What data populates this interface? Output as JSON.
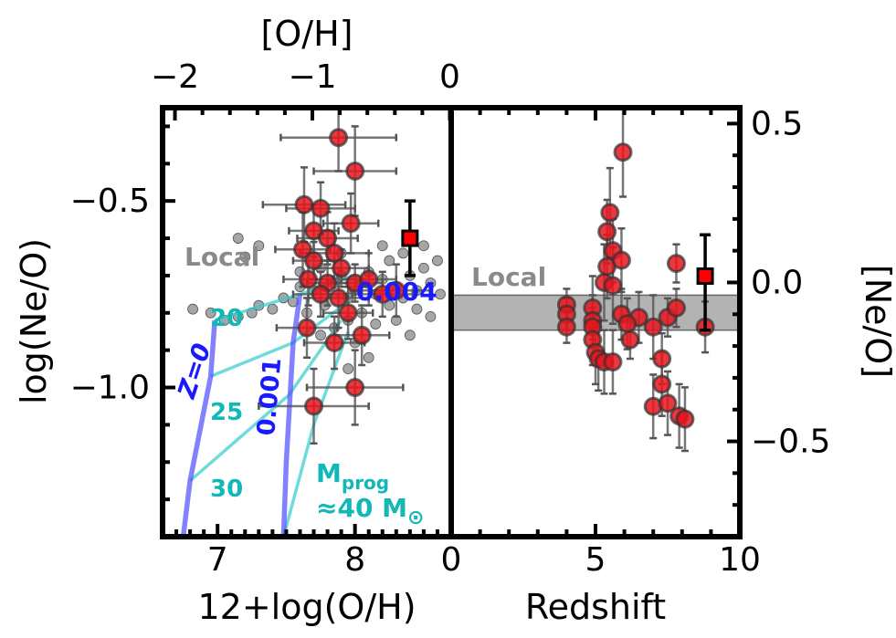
{
  "chart_data": [
    {
      "type": "scatter",
      "panel": "left",
      "xlabel": "12+log(O/H)",
      "ylabel": "log(Ne/O)",
      "top_xlabel": "[O/H]",
      "xlim": [
        6.6,
        8.7
      ],
      "ylim": [
        -1.4,
        -0.25
      ],
      "x_ticks": [
        7,
        8
      ],
      "y_ticks": [
        -0.5,
        -1.0
      ],
      "x_tick_labels": [
        "7",
        "8"
      ],
      "y_tick_labels": [
        "−0.5",
        "−1.0"
      ],
      "top_ticks": [
        -2,
        -1,
        0
      ],
      "top_tick_labels": [
        "−2",
        "−1",
        "0"
      ],
      "local_label": "Local",
      "local_points": [
        [
          6.82,
          -0.79
        ],
        [
          6.95,
          -0.8
        ],
        [
          7.05,
          -0.82
        ],
        [
          7.15,
          -0.81
        ],
        [
          7.25,
          -0.8
        ],
        [
          7.3,
          -0.78
        ],
        [
          7.4,
          -0.79
        ],
        [
          7.48,
          -0.76
        ],
        [
          7.55,
          -0.77
        ],
        [
          7.6,
          -0.73
        ],
        [
          7.7,
          -0.74
        ],
        [
          7.65,
          -0.8
        ],
        [
          7.78,
          -0.78
        ],
        [
          7.85,
          -0.72
        ],
        [
          7.9,
          -0.7
        ],
        [
          7.95,
          -0.76
        ],
        [
          8.0,
          -0.74
        ],
        [
          8.05,
          -0.72
        ],
        [
          8.1,
          -0.69
        ],
        [
          8.15,
          -0.75
        ],
        [
          8.2,
          -0.71
        ],
        [
          8.25,
          -0.78
        ],
        [
          8.3,
          -0.73
        ],
        [
          8.35,
          -0.76
        ],
        [
          8.4,
          -0.7
        ],
        [
          8.45,
          -0.74
        ],
        [
          8.5,
          -0.68
        ],
        [
          8.55,
          -0.72
        ],
        [
          8.6,
          -0.66
        ],
        [
          8.62,
          -0.75
        ],
        [
          8.05,
          -0.8
        ],
        [
          7.95,
          -0.82
        ],
        [
          8.15,
          -0.83
        ],
        [
          8.3,
          -0.82
        ],
        [
          8.45,
          -0.79
        ],
        [
          7.85,
          -0.84
        ],
        [
          7.75,
          -0.86
        ],
        [
          8.0,
          -0.88
        ],
        [
          8.2,
          -0.62
        ],
        [
          8.35,
          -0.64
        ],
        [
          8.5,
          -0.62
        ],
        [
          7.9,
          -0.64
        ],
        [
          7.2,
          -0.65
        ],
        [
          7.15,
          -0.6
        ],
        [
          7.3,
          -0.62
        ],
        [
          8.1,
          -0.92
        ],
        [
          7.95,
          -0.95
        ],
        [
          8.4,
          -0.86
        ],
        [
          7.75,
          -0.68
        ],
        [
          7.6,
          -0.69
        ],
        [
          8.25,
          -0.66
        ],
        [
          8.55,
          -0.81
        ]
      ],
      "jwst_points": [
        {
          "x": 7.88,
          "y": -0.33,
          "xerr": 0.42,
          "yerr": 0.09
        },
        {
          "x": 8.0,
          "y": -0.42,
          "xerr": 0.3,
          "yerr": 0.12
        },
        {
          "x": 7.63,
          "y": -0.51,
          "xerr": 0.3,
          "yerr": 0.1
        },
        {
          "x": 7.75,
          "y": -0.52,
          "xerr": 0.25,
          "yerr": 0.07
        },
        {
          "x": 7.97,
          "y": -0.56,
          "xerr": 0.2,
          "yerr": 0.08
        },
        {
          "x": 7.7,
          "y": -0.58,
          "xerr": 0.18,
          "yerr": 0.07
        },
        {
          "x": 7.8,
          "y": -0.6,
          "xerr": 0.22,
          "yerr": 0.07
        },
        {
          "x": 7.62,
          "y": -0.63,
          "xerr": 0.2,
          "yerr": 0.1
        },
        {
          "x": 7.85,
          "y": -0.64,
          "xerr": 0.25,
          "yerr": 0.08
        },
        {
          "x": 7.7,
          "y": -0.66,
          "xerr": 0.15,
          "yerr": 0.05
        },
        {
          "x": 7.9,
          "y": -0.68,
          "xerr": 0.2,
          "yerr": 0.05
        },
        {
          "x": 7.66,
          "y": -0.71,
          "xerr": 0.18,
          "yerr": 0.07
        },
        {
          "x": 7.8,
          "y": -0.72,
          "xerr": 0.15,
          "yerr": 0.06
        },
        {
          "x": 8.0,
          "y": -0.72,
          "xerr": 0.2,
          "yerr": 0.05
        },
        {
          "x": 8.1,
          "y": -0.71,
          "xerr": 0.2,
          "yerr": 0.07
        },
        {
          "x": 7.75,
          "y": -0.75,
          "xerr": 0.2,
          "yerr": 0.06
        },
        {
          "x": 7.88,
          "y": -0.76,
          "xerr": 0.22,
          "yerr": 0.08
        },
        {
          "x": 8.2,
          "y": -0.75,
          "xerr": 0.22,
          "yerr": 0.06
        },
        {
          "x": 8.3,
          "y": -0.74,
          "xerr": 0.25,
          "yerr": 0.07
        },
        {
          "x": 7.95,
          "y": -0.8,
          "xerr": 0.18,
          "yerr": 0.07
        },
        {
          "x": 7.65,
          "y": -0.84,
          "xerr": 0.22,
          "yerr": 0.08
        },
        {
          "x": 8.05,
          "y": -0.86,
          "xerr": 0.2,
          "yerr": 0.08
        },
        {
          "x": 7.85,
          "y": -0.88,
          "xerr": 0.22,
          "yerr": 0.07
        },
        {
          "x": 8.0,
          "y": -1.0,
          "xerr": 0.35,
          "yerr": 0.1
        },
        {
          "x": 7.7,
          "y": -1.05,
          "xerr": 0.4,
          "yerr": 0.1
        }
      ],
      "highlight_point": {
        "x": 8.4,
        "y": -0.6,
        "yerr_up": 0.1,
        "yerr_down": 0.1
      },
      "model_tracks": [
        {
          "name": "Z=0",
          "label": "Z=0",
          "points": [
            [
              6.75,
              -1.4
            ],
            [
              6.8,
              -1.25
            ],
            [
              6.95,
              -0.97
            ],
            [
              6.98,
              -0.82
            ]
          ]
        },
        {
          "name": "0.001",
          "label": "0.001",
          "points": [
            [
              7.48,
              -1.4
            ],
            [
              7.5,
              -1.2
            ],
            [
              7.55,
              -0.88
            ],
            [
              7.6,
              -0.75
            ]
          ]
        }
      ],
      "mass_lines": [
        {
          "label": "20",
          "points": [
            [
              6.98,
              -0.82
            ],
            [
              7.6,
              -0.75
            ],
            [
              8.0,
              -0.7
            ]
          ]
        },
        {
          "label": "25",
          "points": [
            [
              6.95,
              -0.97
            ],
            [
              7.55,
              -0.88
            ],
            [
              7.95,
              -0.77
            ]
          ]
        },
        {
          "label": "30",
          "points": [
            [
              6.8,
              -1.25
            ],
            [
              7.52,
              -1.02
            ],
            [
              7.9,
              -0.82
            ]
          ]
        },
        {
          "label": "40",
          "points": [
            [
              7.48,
              -1.4
            ],
            [
              7.7,
              -1.1
            ],
            [
              7.95,
              -0.85
            ]
          ]
        }
      ],
      "annotations": {
        "z0": "Z=0",
        "z001": "0.001",
        "z004": "0.004",
        "m20": "20",
        "m25": "25",
        "m30": "30",
        "mprog_main": "M",
        "mprog_sub": "prog",
        "mprog_eq": "≈40 M",
        "mprog_sun": "⊙"
      }
    },
    {
      "type": "scatter",
      "panel": "right",
      "xlabel": "Redshift",
      "ylabel": "[Ne/O]",
      "xlim": [
        0,
        10
      ],
      "ylim": [
        -0.8,
        0.55
      ],
      "x_ticks": [
        0,
        5,
        10
      ],
      "x_tick_labels": [
        "0",
        "5",
        "10"
      ],
      "y_ticks": [
        0.5,
        0.0,
        -0.5
      ],
      "y_tick_labels": [
        "0.5",
        "0.0",
        "−0.5"
      ],
      "local_band": {
        "label": "Local",
        "y0": -0.15,
        "y1": -0.04
      },
      "points": [
        {
          "z": 5.95,
          "y": 0.41,
          "err": 0.14
        },
        {
          "z": 5.5,
          "y": 0.22,
          "err": 0.14
        },
        {
          "z": 5.4,
          "y": 0.16,
          "err": 0.1
        },
        {
          "z": 5.6,
          "y": 0.1,
          "err": 0.1
        },
        {
          "z": 5.4,
          "y": 0.05,
          "err": 0.1
        },
        {
          "z": 5.9,
          "y": 0.07,
          "err": 0.1
        },
        {
          "z": 7.8,
          "y": 0.06,
          "err": 0.06
        },
        {
          "z": 5.3,
          "y": 0.0,
          "err": 0.12
        },
        {
          "z": 5.6,
          "y": -0.01,
          "err": 0.12
        },
        {
          "z": 4.0,
          "y": -0.07,
          "err": 0.05
        },
        {
          "z": 4.9,
          "y": -0.08,
          "err": 0.1
        },
        {
          "z": 5.9,
          "y": -0.1,
          "err": 0.08
        },
        {
          "z": 4.0,
          "y": -0.1,
          "err": 0.05
        },
        {
          "z": 7.5,
          "y": -0.11,
          "err": 0.06
        },
        {
          "z": 4.9,
          "y": -0.12,
          "err": 0.08
        },
        {
          "z": 7.8,
          "y": -0.08,
          "err": 0.06
        },
        {
          "z": 6.5,
          "y": -0.11,
          "err": 0.08
        },
        {
          "z": 6.1,
          "y": -0.13,
          "err": 0.08
        },
        {
          "z": 4.0,
          "y": -0.14,
          "err": 0.05
        },
        {
          "z": 4.9,
          "y": -0.14,
          "err": 0.06
        },
        {
          "z": 7.0,
          "y": -0.14,
          "err": 0.1
        },
        {
          "z": 4.9,
          "y": -0.18,
          "err": 0.08
        },
        {
          "z": 6.2,
          "y": -0.18,
          "err": 0.06
        },
        {
          "z": 5.0,
          "y": -0.22,
          "err": 0.1
        },
        {
          "z": 5.1,
          "y": -0.24,
          "err": 0.1
        },
        {
          "z": 5.3,
          "y": -0.25,
          "err": 0.1
        },
        {
          "z": 5.6,
          "y": -0.25,
          "err": 0.1
        },
        {
          "z": 7.3,
          "y": -0.24,
          "err": 0.08
        },
        {
          "z": 7.3,
          "y": -0.32,
          "err": 0.1
        },
        {
          "z": 7.0,
          "y": -0.39,
          "err": 0.1
        },
        {
          "z": 7.5,
          "y": -0.38,
          "err": 0.1
        },
        {
          "z": 7.9,
          "y": -0.42,
          "err": 0.1
        },
        {
          "z": 8.1,
          "y": -0.43,
          "err": 0.1
        },
        {
          "z": 8.8,
          "y": -0.14,
          "err": 0.08
        }
      ],
      "highlight_point": {
        "z": 8.8,
        "y": 0.02,
        "err_up": 0.13,
        "err_down": 0.17
      }
    }
  ]
}
